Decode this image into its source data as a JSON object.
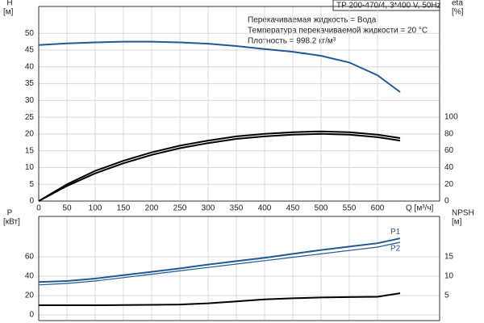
{
  "title_box": "TP 200-470/4, 3*400 V, 50Hz",
  "annotations": [
    "Перекачиваемая жидкость = Вода",
    "Температура перекачиваемой жидкости = 20 °C",
    "Плотность = 998.2 кг/м³"
  ],
  "chart_data": [
    {
      "type": "line",
      "xlabel": "Q [м³/ч]",
      "ylabel": [
        "H",
        "[м]"
      ],
      "y2label": [
        "eta",
        "[%]"
      ],
      "x": [
        0,
        50,
        100,
        150,
        200,
        250,
        300,
        350,
        400,
        450,
        500,
        550,
        600,
        640
      ],
      "xlim": [
        0,
        710
      ],
      "xticks": [
        0,
        50,
        100,
        150,
        200,
        250,
        300,
        350,
        400,
        450,
        500,
        550,
        600
      ],
      "ylim": [
        0,
        58
      ],
      "yticks": [
        0,
        5,
        10,
        15,
        20,
        25,
        30,
        35,
        40,
        45,
        50
      ],
      "y2lim": [
        0,
        231.7
      ],
      "y2ticks": [
        0,
        20,
        40,
        60,
        80,
        100
      ],
      "grid": true,
      "series": [
        {
          "color": "#1f5a96",
          "values": [
            46.5,
            47.0,
            47.3,
            47.5,
            47.5,
            47.3,
            46.9,
            46.2,
            45.3,
            44.5,
            43.3,
            41.3,
            37.5,
            32.5
          ]
        },
        {
          "color": "#000000",
          "axis": "y2",
          "values": [
            0,
            20,
            36,
            48,
            58,
            66,
            72,
            77,
            80,
            82,
            83,
            82,
            79,
            75
          ]
        },
        {
          "color": "#000000",
          "axis": "y2",
          "values": [
            0,
            18,
            33,
            45,
            55,
            63,
            69,
            74,
            77,
            79,
            80,
            79,
            76,
            72
          ]
        }
      ]
    },
    {
      "type": "line",
      "ylabel": [
        "P",
        "[кВт]"
      ],
      "y2label": [
        "NPSH",
        "[м]"
      ],
      "x": [
        0,
        50,
        100,
        150,
        200,
        250,
        300,
        350,
        400,
        450,
        500,
        550,
        600,
        640
      ],
      "xlim": [
        0,
        710
      ],
      "xticks": [
        0,
        50,
        100,
        150,
        200,
        250,
        300,
        350,
        400,
        450,
        500,
        550,
        600
      ],
      "ylim": [
        -5.8,
        101.7
      ],
      "yticks": [
        0,
        20,
        40,
        60
      ],
      "y2lim": [
        -1.45,
        25.4
      ],
      "y2ticks": [
        5,
        10,
        15
      ],
      "grid": true,
      "series": [
        {
          "name": "P1",
          "color": "#1f5a96",
          "values": [
            34,
            35,
            37.5,
            41,
            44.5,
            48,
            52,
            55.5,
            59,
            63,
            67,
            70.5,
            74,
            79
          ]
        },
        {
          "name": "P2",
          "color": "#1f5a96",
          "values": [
            31,
            32.5,
            35,
            38.5,
            42,
            45.5,
            49,
            52.5,
            56,
            59.5,
            63,
            66.5,
            70,
            75
          ]
        },
        {
          "color": "#000000",
          "axis": "y2",
          "values": [
            2.5,
            2.5,
            2.5,
            2.55,
            2.6,
            2.7,
            3.0,
            3.5,
            4.0,
            4.3,
            4.5,
            4.6,
            4.7,
            5.6
          ]
        }
      ]
    }
  ]
}
